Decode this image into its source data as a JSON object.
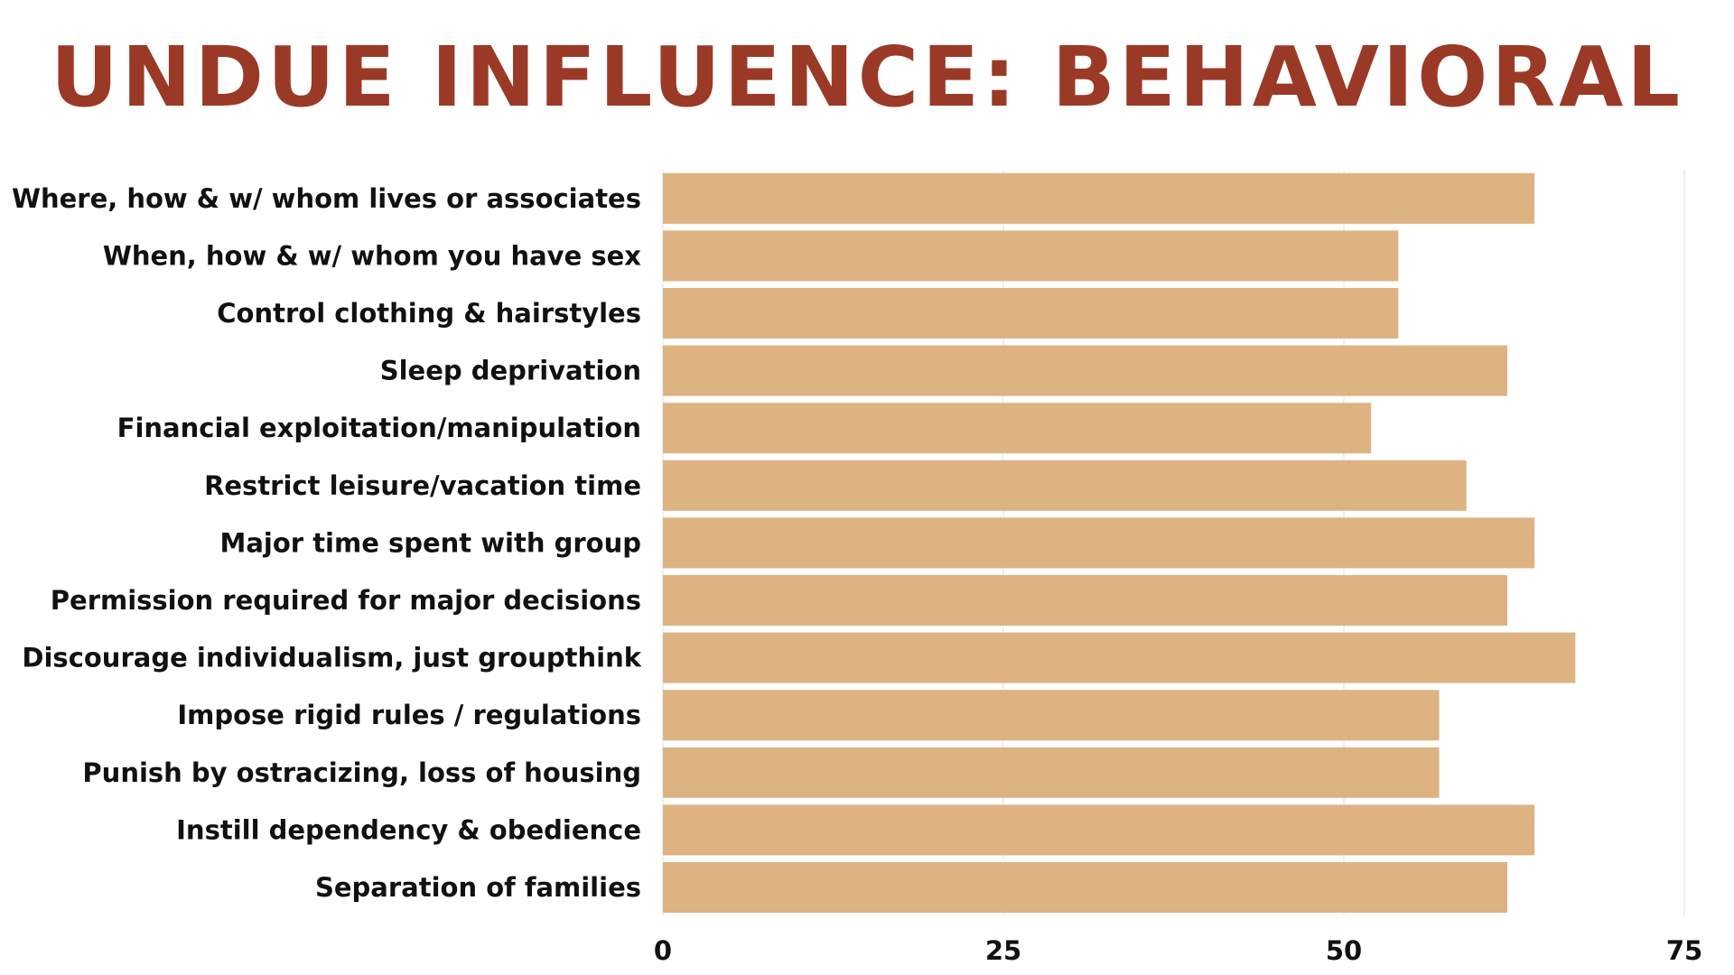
{
  "chart_data": {
    "type": "bar",
    "orientation": "horizontal",
    "title": "UNDUE INFLUENCE: BEHAVIORAL",
    "categories": [
      "Where, how & w/ whom lives or associates",
      "When, how & w/ whom you have sex",
      "Control clothing & hairstyles",
      "Sleep deprivation",
      "Financial exploitation/manipulation",
      "Restrict leisure/vacation time",
      "Major time spent with group",
      "Permission required for major decisions",
      "Discourage individualism, just groupthink",
      "Impose rigid rules / regulations",
      "Punish by ostracizing, loss of housing",
      "Instill dependency & obedience",
      "Separation of families"
    ],
    "values": [
      64,
      54,
      54,
      62,
      52,
      59,
      64,
      62,
      67,
      57,
      57,
      64,
      62
    ],
    "xlim": [
      0,
      75
    ],
    "xticks": [
      0,
      25,
      50,
      75
    ],
    "xtick_labels": [
      "0",
      "25",
      "50",
      "75"
    ],
    "grid": true,
    "legend": "none",
    "colors": {
      "title": "#9a3a26",
      "bar": "#ddb382",
      "grid": "#e2e2e2",
      "text": "#111111"
    }
  }
}
